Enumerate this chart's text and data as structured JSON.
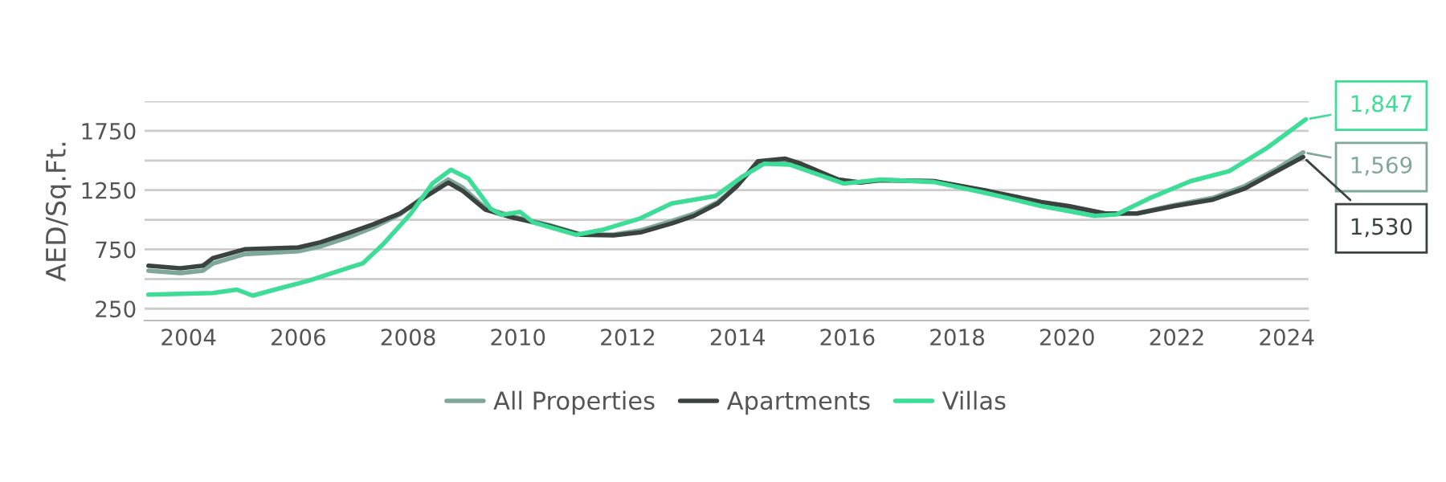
{
  "chart_data": {
    "type": "line",
    "ylabel": "AED/Sq.Ft.",
    "xlim": [
      2003.2,
      2024.4
    ],
    "xticks": [
      2004,
      2006,
      2008,
      2010,
      2012,
      2014,
      2016,
      2018,
      2020,
      2022,
      2024
    ],
    "ylim": [
      150,
      2000
    ],
    "yticks": [
      250,
      {
        "value": 500,
        "label": null
      },
      750,
      {
        "value": 1000,
        "label": null
      },
      1250,
      {
        "value": 1500,
        "label": null
      },
      1750,
      {
        "value": 2000,
        "label": null
      }
    ],
    "grid": "y",
    "legend": "bottom",
    "tick_labels": true,
    "series": [
      {
        "name": "All Properties",
        "color": "#7fa898",
        "x": [
          2003.27,
          2003.85,
          2004.26,
          2004.44,
          2005.02,
          2006.0,
          2006.4,
          2006.9,
          2007.36,
          2007.85,
          2008.35,
          2008.73,
          2009.0,
          2009.4,
          2009.9,
          2010.57,
          2011.15,
          2011.74,
          2012.23,
          2012.8,
          2013.2,
          2013.64,
          2013.99,
          2014.37,
          2014.86,
          2015.15,
          2015.83,
          2016.23,
          2016.6,
          2017.58,
          2018.57,
          2019.53,
          2020.03,
          2020.7,
          2021.28,
          2021.96,
          2022.66,
          2023.24,
          2023.82,
          2024.3
        ],
        "values": [
          570,
          550,
          570,
          630,
          710,
          735,
          775,
          850,
          935,
          1045,
          1220,
          1340,
          1270,
          1100,
          1030,
          955,
          875,
          875,
          910,
          990,
          1050,
          1150,
          1290,
          1480,
          1500,
          1470,
          1340,
          1315,
          1332,
          1325,
          1240,
          1145,
          1110,
          1050,
          1055,
          1125,
          1185,
          1285,
          1430,
          1569
        ],
        "value_labels": [
          null,
          null,
          null,
          null,
          null,
          null,
          null,
          null,
          null,
          null,
          null,
          null,
          null,
          null,
          null,
          null,
          null,
          null,
          null,
          null,
          null,
          null,
          null,
          null,
          null,
          null,
          null,
          null,
          null,
          null,
          null,
          null,
          null,
          null,
          null,
          null,
          null,
          null,
          null,
          "1,569"
        ]
      },
      {
        "name": "Apartments",
        "color": "#3a4340",
        "x": [
          2003.27,
          2003.85,
          2004.26,
          2004.44,
          2005.02,
          2006.0,
          2006.4,
          2006.9,
          2007.36,
          2007.85,
          2008.35,
          2008.73,
          2009.0,
          2009.4,
          2009.9,
          2010.57,
          2011.15,
          2011.74,
          2012.23,
          2012.8,
          2013.2,
          2013.64,
          2013.99,
          2014.37,
          2014.86,
          2015.15,
          2015.83,
          2016.23,
          2016.6,
          2017.58,
          2018.57,
          2019.53,
          2020.03,
          2020.7,
          2021.28,
          2021.96,
          2022.66,
          2023.24,
          2023.82,
          2024.3
        ],
        "values": [
          612,
          591,
          612,
          675,
          751,
          767,
          810,
          886,
          961,
          1053,
          1204,
          1314,
          1242,
          1087,
          1019,
          949,
          873,
          868,
          893,
          969,
          1032,
          1138,
          1284,
          1494,
          1516,
          1473,
          1339,
          1314,
          1334,
          1326,
          1242,
          1150,
          1116,
          1053,
          1053,
          1116,
          1170,
          1264,
          1410,
          1530
        ],
        "value_labels": [
          null,
          null,
          null,
          null,
          null,
          null,
          null,
          null,
          null,
          null,
          null,
          null,
          null,
          null,
          null,
          null,
          null,
          null,
          null,
          null,
          null,
          null,
          null,
          null,
          null,
          null,
          null,
          null,
          null,
          null,
          null,
          null,
          null,
          null,
          null,
          null,
          null,
          null,
          null,
          "1,530"
        ]
      },
      {
        "name": "Villas",
        "color": "#3ddc97",
        "x": [
          2003.27,
          2004.44,
          2004.88,
          2005.17,
          2005.6,
          2006.19,
          2006.89,
          2007.18,
          2007.56,
          2008.05,
          2008.44,
          2008.78,
          2009.1,
          2009.5,
          2009.7,
          2010.04,
          2010.28,
          2011.07,
          2011.56,
          2012.23,
          2012.8,
          2013.6,
          2014.1,
          2014.48,
          2014.95,
          2015.94,
          2016.6,
          2017.58,
          2018.57,
          2019.53,
          2020.5,
          2020.9,
          2021.49,
          2022.25,
          2022.95,
          2023.62,
          2024.35
        ],
        "values": [
          369,
          382,
          411,
          360,
          414,
          486,
          591,
          634,
          801,
          1053,
          1305,
          1422,
          1347,
          1095,
          1041,
          1066,
          978,
          873,
          918,
          1012,
          1138,
          1201,
          1368,
          1473,
          1465,
          1305,
          1339,
          1318,
          1221,
          1116,
          1032,
          1045,
          1179,
          1326,
          1410,
          1599,
          1847
        ],
        "value_labels": [
          null,
          null,
          null,
          null,
          null,
          null,
          null,
          null,
          null,
          null,
          null,
          null,
          null,
          null,
          null,
          null,
          null,
          null,
          null,
          null,
          null,
          null,
          null,
          null,
          null,
          null,
          null,
          null,
          null,
          null,
          null,
          null,
          null,
          null,
          null,
          null,
          "1,847"
        ]
      }
    ]
  }
}
